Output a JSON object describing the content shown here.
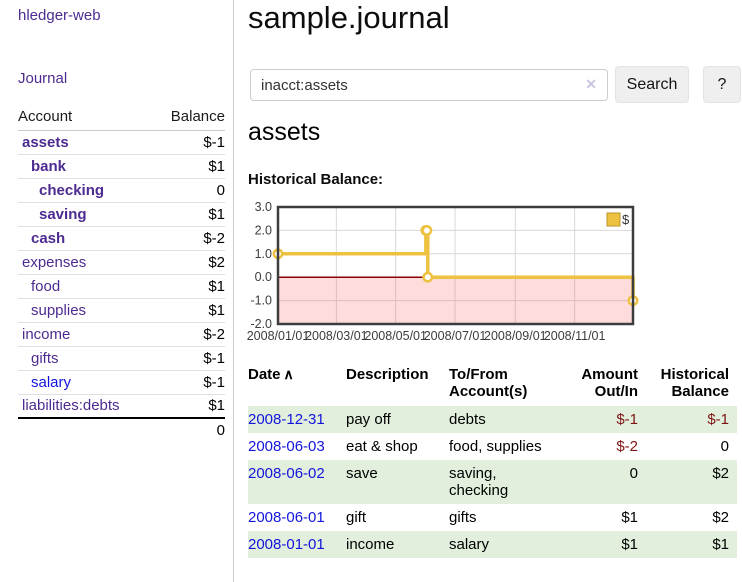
{
  "colors": {
    "link_purple": "#4d2b91",
    "link_blue": "#1414dd",
    "negative_strong": "#7e1414",
    "negative_soft": "#bb7e7e",
    "row_green": "#e1efdc",
    "chart_line": "#EDC240",
    "chart_zero_line": "#8b0000",
    "chart_negative_fill": "rgba(255,50,50,0.17)"
  },
  "sidebar": {
    "brand": "hledger-web",
    "nav_journal": "Journal",
    "table": {
      "account_header": "Account",
      "balance_header": "Balance",
      "accounts": [
        {
          "name": "assets",
          "balance": "$-1"
        },
        {
          "name": "bank",
          "balance": "$1"
        },
        {
          "name": "checking",
          "balance": "0"
        },
        {
          "name": "saving",
          "balance": "$1"
        },
        {
          "name": "cash",
          "balance": "$-2"
        },
        {
          "name": "expenses",
          "balance": "$2"
        },
        {
          "name": "food",
          "balance": "$1"
        },
        {
          "name": "supplies",
          "balance": "$1"
        },
        {
          "name": "income",
          "balance": "$-2"
        },
        {
          "name": "gifts",
          "balance": "$-1"
        },
        {
          "name": "salary",
          "balance": "$-1"
        },
        {
          "name": "liabilities:debts",
          "balance": "$1"
        }
      ],
      "total": "0"
    }
  },
  "main": {
    "title": "sample.journal",
    "search": {
      "value": "inacct:assets",
      "clear_icon": "✕",
      "search_button": "Search",
      "help_button": "?"
    },
    "account_heading": "assets",
    "chart_title": "Historical Balance:"
  },
  "chart_data": {
    "type": "line",
    "steps": true,
    "title": "Historical Balance:",
    "xlabel": "",
    "ylabel": "",
    "ylim": [
      -2,
      3
    ],
    "yticks": [
      3,
      2,
      1,
      0,
      -1,
      -2
    ],
    "x_range": [
      "2008-01-01",
      "2008-12-31"
    ],
    "xticks": [
      "2008/01/01",
      "2008/03/01",
      "2008/05/01",
      "2008/07/01",
      "2008/09/01",
      "2008/11/01"
    ],
    "grid": true,
    "legend_position": "top-right",
    "series": [
      {
        "name": "$",
        "color": "#EDC240",
        "points": [
          [
            "2008-01-01",
            1
          ],
          [
            "2008-06-01",
            2
          ],
          [
            "2008-06-02",
            2
          ],
          [
            "2008-06-03",
            0
          ],
          [
            "2008-12-31",
            -1
          ]
        ]
      }
    ]
  },
  "register": {
    "headers": {
      "date": "Date",
      "sort_icon": "∧",
      "description": "Description",
      "account": "To/From Account(s)",
      "amount": "Amount Out/In",
      "balance": "Historical Balance"
    },
    "rows": [
      {
        "date": "2008-12-31",
        "description": "pay off",
        "account": "debts",
        "amount": "$-1",
        "balance": "$-1"
      },
      {
        "date": "2008-06-03",
        "description": "eat & shop",
        "account": "food, supplies",
        "amount": "$-2",
        "balance": "0"
      },
      {
        "date": "2008-06-02",
        "description": "save",
        "account": "saving, checking",
        "amount": "0",
        "balance": "$2"
      },
      {
        "date": "2008-06-01",
        "description": "gift",
        "account": "gifts",
        "amount": "$1",
        "balance": "$2"
      },
      {
        "date": "2008-01-01",
        "description": "income",
        "account": "salary",
        "amount": "$1",
        "balance": "$1"
      }
    ]
  }
}
